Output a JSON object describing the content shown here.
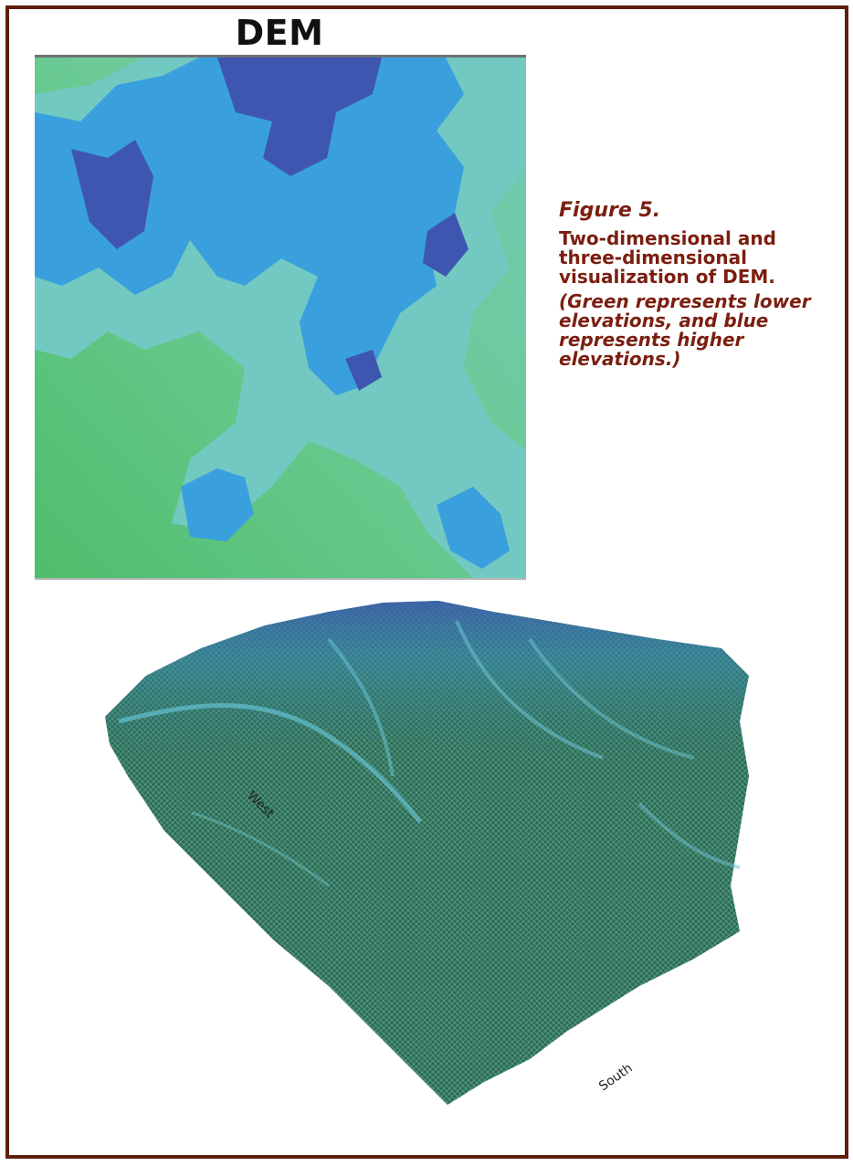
{
  "figure": {
    "panel_title": "DEM",
    "caption_number": "Figure 5.",
    "caption_title": "Two-dimensional and three-dimensional visualization of DEM.",
    "caption_note": "(Green represents lower elevations, and blue represents higher elevations.)"
  },
  "terrain_view": {
    "west_label": "West",
    "south_label": "South"
  },
  "colors": {
    "frame": "#5c1f0e",
    "caption_text": "#7b1e10",
    "low_elevation": "#52bf6f",
    "mid_elevation": "#6ec6c2",
    "high_elevation_light": "#2e92dc",
    "high_elevation_dark": "#3d4fa8",
    "terrain_mesh": "#2f6b57"
  }
}
